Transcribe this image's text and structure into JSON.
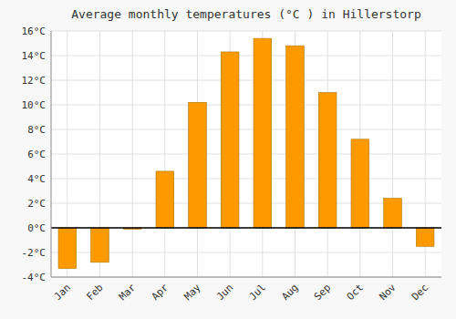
{
  "chart_data": {
    "type": "bar",
    "title": "Average monthly temperatures (°C ) in Hillerstorp",
    "categories": [
      "Jan",
      "Feb",
      "Mar",
      "Apr",
      "May",
      "Jun",
      "Jul",
      "Aug",
      "Sep",
      "Oct",
      "Nov",
      "Dec"
    ],
    "values": [
      -3.3,
      -2.8,
      -0.1,
      4.6,
      10.2,
      14.3,
      15.4,
      14.8,
      11.0,
      7.2,
      2.4,
      -1.5
    ],
    "color": "#FF9900",
    "ylim": [
      -4,
      16
    ],
    "yticks": [
      {
        "value": -4,
        "label": "-4°C"
      },
      {
        "value": -2,
        "label": "-2°C"
      },
      {
        "value": 0,
        "label": "0°C"
      },
      {
        "value": 2,
        "label": "2°C"
      },
      {
        "value": 4,
        "label": "4°C"
      },
      {
        "value": 6,
        "label": "6°C"
      },
      {
        "value": 8,
        "label": "8°C"
      },
      {
        "value": 10,
        "label": "10°C"
      },
      {
        "value": 12,
        "label": "12°C"
      },
      {
        "value": 14,
        "label": "14°C"
      },
      {
        "value": 16,
        "label": "16°C"
      }
    ],
    "grid": true
  }
}
